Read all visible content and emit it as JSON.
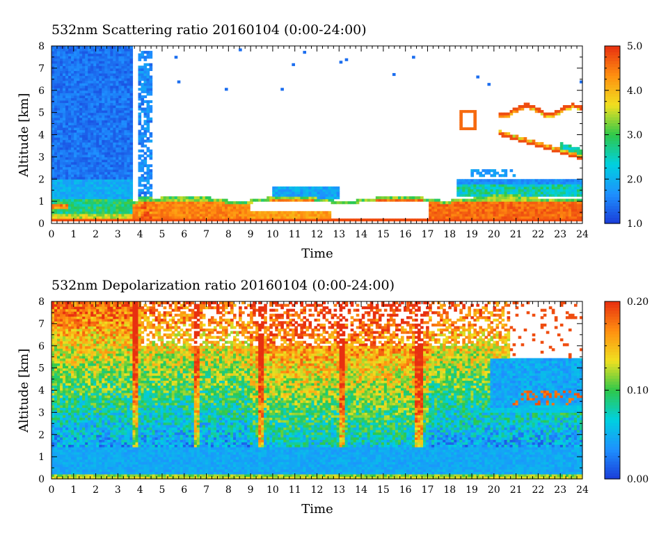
{
  "chart_data": [
    {
      "type": "heatmap",
      "title": "532nm Scattering ratio  20160104 (0:00-24:00)",
      "xlabel": "Time",
      "ylabel": "Altitude [km]",
      "xlim": [
        0,
        24
      ],
      "ylim": [
        0,
        8
      ],
      "x_ticks": [
        0,
        1,
        2,
        3,
        4,
        5,
        6,
        7,
        8,
        9,
        10,
        11,
        12,
        13,
        14,
        15,
        16,
        17,
        18,
        19,
        20,
        21,
        22,
        23,
        24
      ],
      "y_ticks": [
        0,
        1,
        2,
        3,
        4,
        5,
        6,
        7,
        8
      ],
      "colorbar": {
        "min": 1.0,
        "max": 5.0,
        "ticks": [
          "1.0",
          "2.0",
          "3.0",
          "4.0",
          "5.0"
        ]
      },
      "colorscale": [
        "#1a3cd8",
        "#1e90ff",
        "#00d0e0",
        "#2ec84a",
        "#f0e020",
        "#ff9010",
        "#e83010"
      ],
      "features": {
        "boundary_layer_top_km": 1.2,
        "high_ratio_layer_km": [
          0.2,
          1.0
        ],
        "clouds": [
          {
            "time_start": 18.5,
            "time_end": 24,
            "base_km": 3.0,
            "top_km": 5.5
          },
          {
            "time_start": 18.5,
            "time_end": 24,
            "base_km": 1.3,
            "top_km": 2.0
          }
        ]
      }
    },
    {
      "type": "heatmap",
      "title": "532nm Depolarization ratio  20160104 (0:00-24:00)",
      "xlabel": "Time",
      "ylabel": "Altitude [km]",
      "xlim": [
        0,
        24
      ],
      "ylim": [
        0,
        8
      ],
      "x_ticks": [
        0,
        1,
        2,
        3,
        4,
        5,
        6,
        7,
        8,
        9,
        10,
        11,
        12,
        13,
        14,
        15,
        16,
        17,
        18,
        19,
        20,
        21,
        22,
        23,
        24
      ],
      "y_ticks": [
        0,
        1,
        2,
        3,
        4,
        5,
        6,
        7,
        8
      ],
      "colorbar": {
        "min": 0.0,
        "max": 0.2,
        "ticks": [
          "0.00",
          "0.10",
          "0.20"
        ]
      },
      "colorscale": [
        "#1a3cd8",
        "#1e90ff",
        "#00d0e0",
        "#2ec84a",
        "#f0e020",
        "#ff9010",
        "#e83010"
      ],
      "features": {
        "low_layer_ratio": 0.03,
        "upper_noise_ratio": 0.2,
        "cloud_layer": {
          "time_start": 19.8,
          "time_end": 24,
          "base_km": 3.0,
          "top_km": 5.4
        }
      }
    }
  ]
}
